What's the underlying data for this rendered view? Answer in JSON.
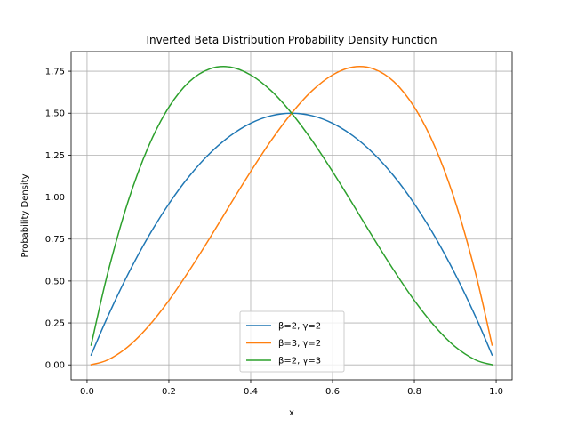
{
  "chart_data": {
    "type": "line",
    "title": "Inverted Beta Distribution Probability Density Function",
    "xlabel": "x",
    "ylabel": "Probability Density",
    "xlim": [
      -0.039,
      1.039
    ],
    "ylim": [
      -0.089,
      1.867
    ],
    "xticks": [
      0,
      0.2,
      0.4,
      0.6,
      0.8,
      1.0
    ],
    "xtick_labels": [
      "0.0",
      "0.2",
      "0.4",
      "0.6",
      "0.8",
      "1.0"
    ],
    "yticks": [
      0,
      0.25,
      0.5,
      0.75,
      1.0,
      1.25,
      1.5,
      1.75
    ],
    "ytick_labels": [
      "0.00",
      "0.25",
      "0.50",
      "0.75",
      "1.00",
      "1.25",
      "1.50",
      "1.75"
    ],
    "grid": true,
    "legend_position": "bottom-center",
    "x": [
      0.01,
      0.05,
      0.1,
      0.15,
      0.2,
      0.25,
      0.3,
      0.35,
      0.4,
      0.45,
      0.5,
      0.55,
      0.6,
      0.65,
      0.7,
      0.75,
      0.8,
      0.85,
      0.9,
      0.95,
      0.99
    ],
    "series": [
      {
        "name": "β=2, γ=2",
        "color": "#1f77b4",
        "values": [
          0.059,
          0.285,
          0.54,
          0.765,
          0.96,
          1.125,
          1.26,
          1.365,
          1.44,
          1.485,
          1.5,
          1.485,
          1.44,
          1.365,
          1.26,
          1.125,
          0.96,
          0.765,
          0.54,
          0.285,
          0.059
        ]
      },
      {
        "name": "β=3, γ=2",
        "color": "#ff7f0e",
        "values": [
          0.001,
          0.029,
          0.108,
          0.23,
          0.384,
          0.563,
          0.756,
          0.956,
          1.152,
          1.337,
          1.5,
          1.634,
          1.728,
          1.775,
          1.764,
          1.688,
          1.536,
          1.301,
          0.972,
          0.542,
          0.118
        ]
      },
      {
        "name": "β=2, γ=3",
        "color": "#2ca02c",
        "values": [
          0.118,
          0.542,
          0.972,
          1.301,
          1.536,
          1.688,
          1.764,
          1.775,
          1.728,
          1.634,
          1.5,
          1.337,
          1.152,
          0.956,
          0.756,
          0.563,
          0.384,
          0.23,
          0.108,
          0.029,
          0.001
        ]
      }
    ]
  }
}
